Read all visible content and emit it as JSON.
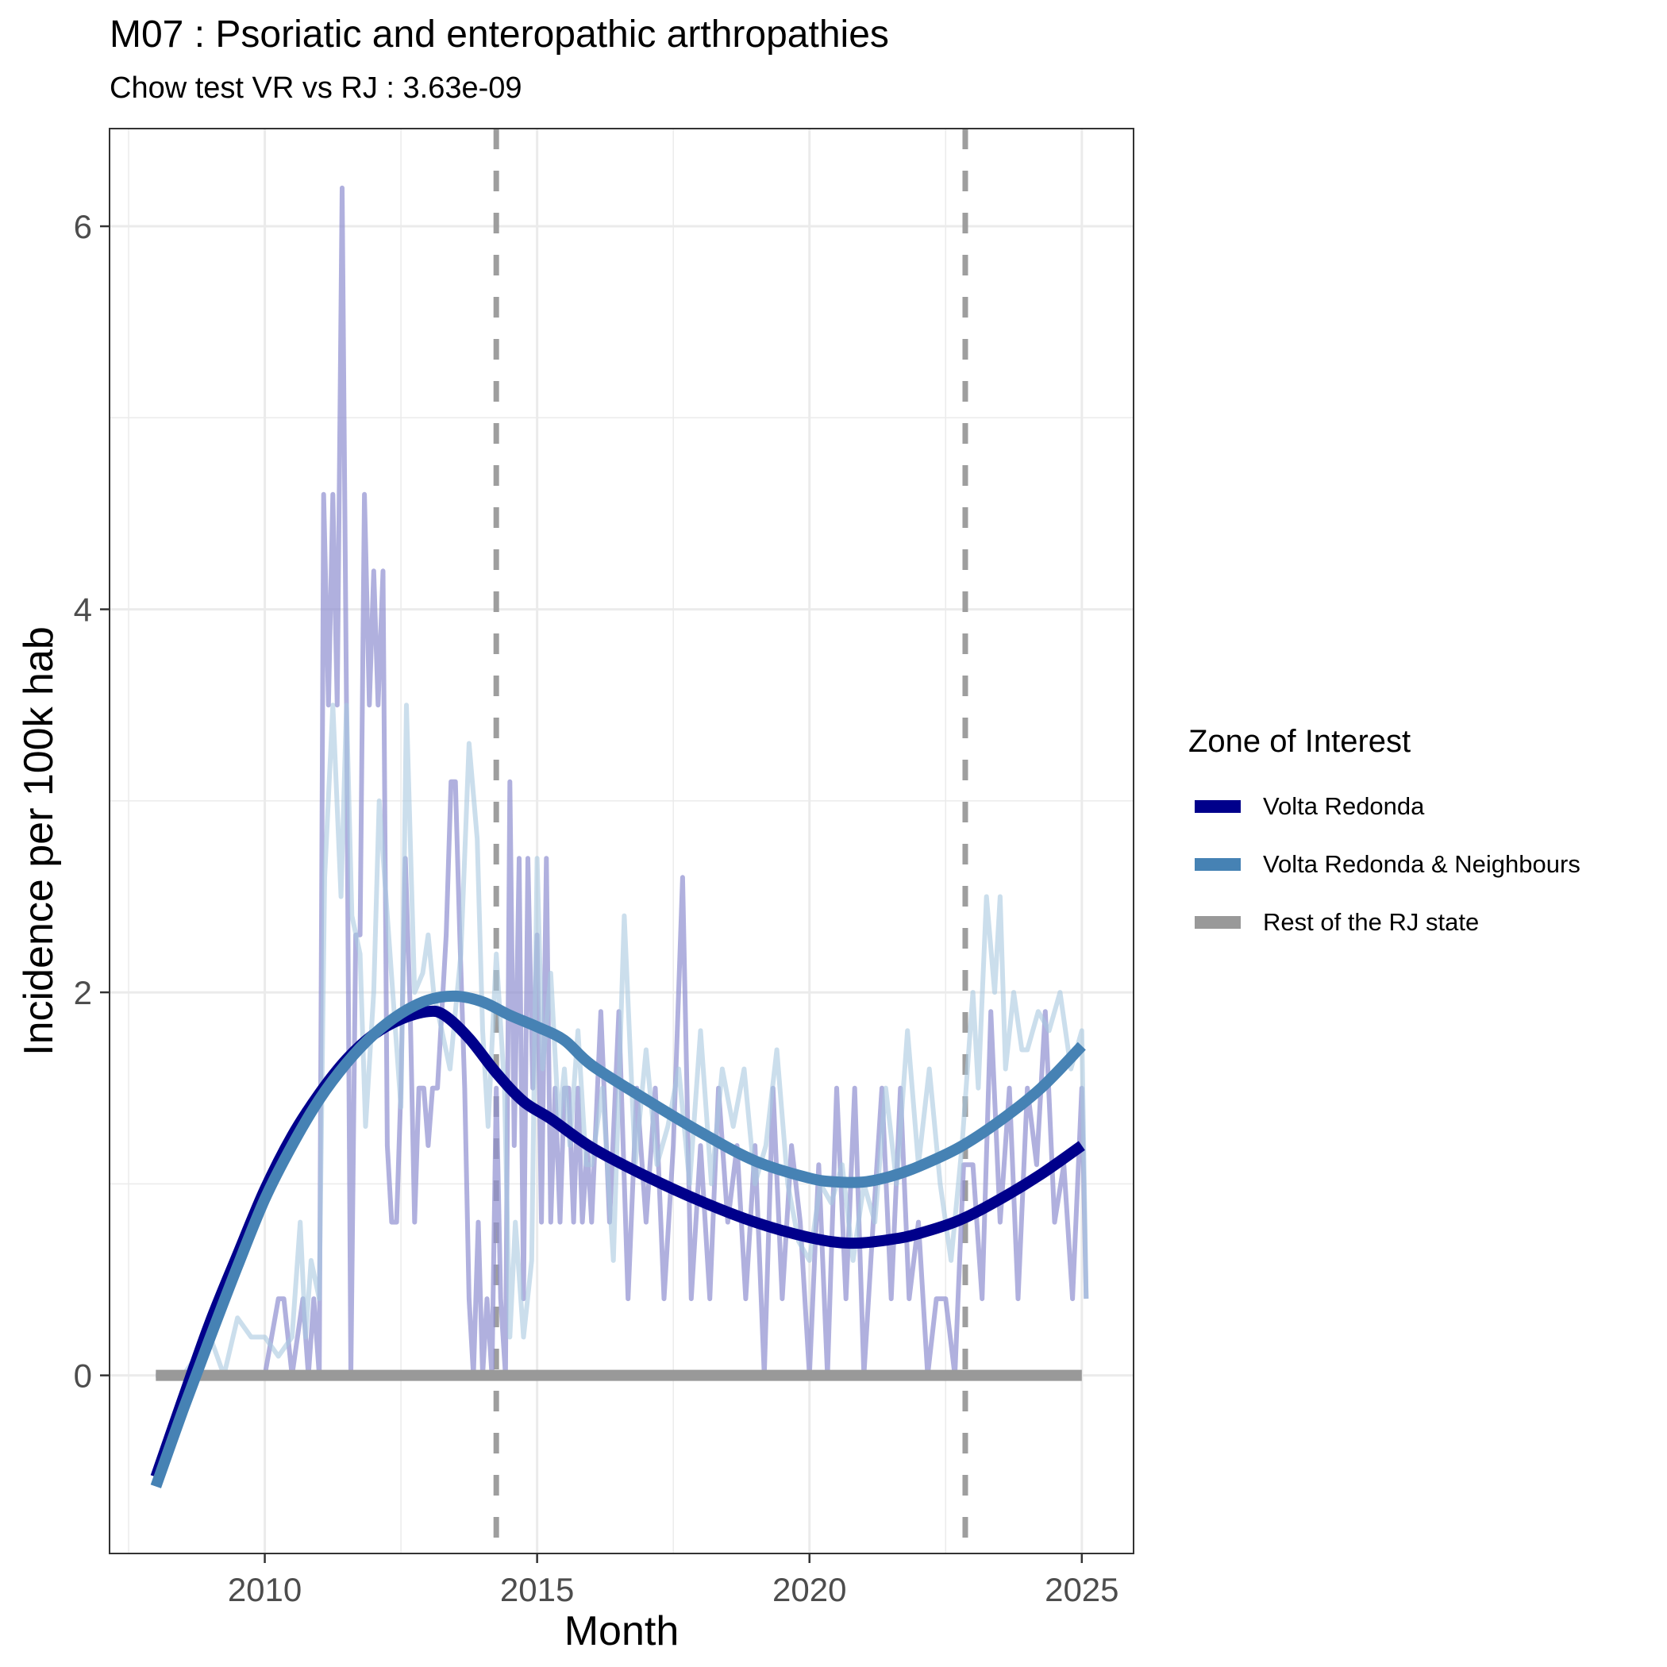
{
  "chart_data": {
    "type": "line",
    "title": "M07 : Psoriatic and enteropathic arthropathies",
    "subtitle": "Chow test VR vs RJ : 3.63e-09",
    "xlabel": "Month",
    "ylabel": "Incidence per 100k hab",
    "xlim": [
      2007.15,
      2025.95
    ],
    "ylim": [
      -0.93,
      6.51
    ],
    "x_ticks": [
      2010,
      2015,
      2020,
      2025
    ],
    "x_tick_labels": [
      "2010",
      "2015",
      "2020",
      "2025"
    ],
    "y_ticks": [
      0,
      2,
      4,
      6
    ],
    "y_tick_labels": [
      "0",
      "2",
      "4",
      "6"
    ],
    "grid": true,
    "legend": {
      "title": "Zone of Interest",
      "placement": "right",
      "entries": [
        {
          "name": "Volta Redonda",
          "color": "#00008B"
        },
        {
          "name": "Volta Redonda & Neighbours",
          "color": "#4682B4"
        },
        {
          "name": "Rest of the RJ state",
          "color": "#999999"
        }
      ]
    },
    "vlines": [
      {
        "x": 2014.25,
        "style": "dashed",
        "color": "#999999"
      },
      {
        "x": 2022.86,
        "style": "dashed",
        "color": "#999999"
      }
    ],
    "raw_series": [
      {
        "name": "Volta Redonda (monthly)",
        "color": "#8E8ED0",
        "x": [
          2008.0,
          2008.5,
          2009.0,
          2009.5,
          2010.0,
          2010.25,
          2010.35,
          2010.5,
          2010.7,
          2010.8,
          2010.9,
          2011.0,
          2011.08,
          2011.17,
          2011.25,
          2011.33,
          2011.42,
          2011.5,
          2011.58,
          2011.67,
          2011.75,
          2011.83,
          2011.92,
          2012.0,
          2012.08,
          2012.17,
          2012.25,
          2012.33,
          2012.42,
          2012.5,
          2012.58,
          2012.67,
          2012.75,
          2012.83,
          2012.92,
          2013.0,
          2013.08,
          2013.17,
          2013.25,
          2013.33,
          2013.42,
          2013.5,
          2013.58,
          2013.67,
          2013.75,
          2013.83,
          2013.92,
          2014.0,
          2014.08,
          2014.17,
          2014.25,
          2014.33,
          2014.42,
          2014.5,
          2014.58,
          2014.67,
          2014.75,
          2014.83,
          2014.92,
          2015.0,
          2015.08,
          2015.17,
          2015.25,
          2015.33,
          2015.42,
          2015.5,
          2015.58,
          2015.67,
          2015.75,
          2015.83,
          2015.92,
          2016.0,
          2016.17,
          2016.33,
          2016.5,
          2016.67,
          2016.83,
          2017.0,
          2017.17,
          2017.33,
          2017.5,
          2017.67,
          2017.83,
          2018.0,
          2018.17,
          2018.33,
          2018.5,
          2018.67,
          2018.83,
          2019.0,
          2019.17,
          2019.33,
          2019.5,
          2019.67,
          2019.83,
          2020.0,
          2020.17,
          2020.33,
          2020.5,
          2020.67,
          2020.83,
          2021.0,
          2021.17,
          2021.33,
          2021.5,
          2021.67,
          2021.83,
          2022.0,
          2022.17,
          2022.33,
          2022.5,
          2022.67,
          2022.83,
          2023.0,
          2023.17,
          2023.33,
          2023.5,
          2023.67,
          2023.83,
          2024.0,
          2024.17,
          2024.33,
          2024.5,
          2024.67,
          2024.83,
          2025.0,
          2025.08
        ],
        "y": [
          0,
          0,
          0,
          0,
          0,
          0.4,
          0.4,
          0,
          0.4,
          0,
          0.4,
          0,
          4.6,
          3.5,
          4.6,
          3.5,
          6.2,
          3.5,
          0,
          2.3,
          2.3,
          4.6,
          3.5,
          4.2,
          3.5,
          4.2,
          1.2,
          0.8,
          0.8,
          1.5,
          2.7,
          1.9,
          0.8,
          1.5,
          1.5,
          1.2,
          1.5,
          1.5,
          1.9,
          2.3,
          3.1,
          3.1,
          2.3,
          1.5,
          0.4,
          0,
          0.8,
          0,
          0.4,
          0,
          1.5,
          0.4,
          0,
          3.1,
          1.2,
          2.7,
          0.4,
          2.7,
          1.5,
          2.3,
          0.8,
          2.7,
          0.8,
          1.5,
          0.8,
          1.5,
          1.5,
          0.8,
          1.5,
          0.8,
          1.2,
          0.8,
          1.9,
          0.8,
          1.9,
          0.4,
          1.5,
          0.8,
          1.5,
          0.4,
          1.2,
          2.6,
          0.4,
          1.2,
          0.4,
          1.5,
          0.8,
          1.2,
          0.4,
          1.2,
          0,
          1.5,
          0.4,
          1.2,
          0.8,
          0,
          1.1,
          0,
          1.5,
          0.4,
          1.5,
          0,
          0.8,
          1.5,
          0.4,
          1.5,
          0.4,
          0.8,
          0,
          0.4,
          0.4,
          0,
          1.1,
          1.1,
          0.4,
          1.9,
          0.8,
          1.5,
          0.4,
          1.5,
          1.1,
          1.9,
          0.8,
          1.1,
          0.4,
          1.5,
          0.4
        ],
        "opacity": 0.7
      },
      {
        "name": "Volta Redonda & Neighbours (monthly)",
        "color": "#A8C8E0",
        "x": [
          2008.0,
          2008.5,
          2009.0,
          2009.25,
          2009.5,
          2009.75,
          2010.0,
          2010.25,
          2010.5,
          2010.65,
          2010.75,
          2010.85,
          2011.0,
          2011.1,
          2011.25,
          2011.4,
          2011.5,
          2011.6,
          2011.75,
          2011.85,
          2012.0,
          2012.1,
          2012.25,
          2012.4,
          2012.5,
          2012.6,
          2012.75,
          2012.9,
          2013.0,
          2013.1,
          2013.25,
          2013.4,
          2013.5,
          2013.6,
          2013.75,
          2013.9,
          2014.0,
          2014.1,
          2014.25,
          2014.4,
          2014.5,
          2014.6,
          2014.75,
          2014.9,
          2015.0,
          2015.1,
          2015.25,
          2015.4,
          2015.5,
          2015.6,
          2015.75,
          2015.9,
          2016.0,
          2016.2,
          2016.4,
          2016.6,
          2016.8,
          2017.0,
          2017.2,
          2017.4,
          2017.6,
          2017.8,
          2018.0,
          2018.2,
          2018.4,
          2018.6,
          2018.8,
          2019.0,
          2019.2,
          2019.4,
          2019.6,
          2019.8,
          2020.0,
          2020.2,
          2020.4,
          2020.6,
          2020.8,
          2021.0,
          2021.2,
          2021.4,
          2021.6,
          2021.8,
          2022.0,
          2022.2,
          2022.4,
          2022.6,
          2022.8,
          2023.0,
          2023.1,
          2023.25,
          2023.4,
          2023.5,
          2023.6,
          2023.75,
          2023.9,
          2024.0,
          2024.2,
          2024.4,
          2024.6,
          2024.8,
          2025.0,
          2025.08
        ],
        "y": [
          0,
          0,
          0.2,
          0,
          0.3,
          0.2,
          0.2,
          0.1,
          0.2,
          0.8,
          0.2,
          0.6,
          0.4,
          2.6,
          3.5,
          2.5,
          3.5,
          2.4,
          2.2,
          1.3,
          2.0,
          3.0,
          2.4,
          1.8,
          1.4,
          3.5,
          2.0,
          2.1,
          2.3,
          2.0,
          1.8,
          1.6,
          1.9,
          2.2,
          3.3,
          2.8,
          1.8,
          1.3,
          2.2,
          1.5,
          0.2,
          0.8,
          0.2,
          0.6,
          2.7,
          1.6,
          2.1,
          1.3,
          1.6,
          1.2,
          1.8,
          1.1,
          1.1,
          1.5,
          0.6,
          2.4,
          1.1,
          1.7,
          1.1,
          1.3,
          1.6,
          1.0,
          1.8,
          1.0,
          1.6,
          1.3,
          1.6,
          1.0,
          1.2,
          1.7,
          1.0,
          0.7,
          0.6,
          1.0,
          0.9,
          1.1,
          0.6,
          1.0,
          0.8,
          1.5,
          1.0,
          1.8,
          1.1,
          1.6,
          1.0,
          0.6,
          1.2,
          2.0,
          1.5,
          2.5,
          2.0,
          2.5,
          1.6,
          2.0,
          1.7,
          1.7,
          1.9,
          1.8,
          2.0,
          1.6,
          1.8,
          0.4
        ],
        "opacity": 0.6
      }
    ],
    "series": [
      {
        "name": "Volta Redonda",
        "color": "#00008B",
        "x": [
          2008.0,
          2008.5,
          2009.0,
          2009.5,
          2010.0,
          2010.5,
          2011.0,
          2011.5,
          2012.0,
          2012.5,
          2013.0,
          2013.3,
          2013.75,
          2014.25,
          2014.75,
          2015.25,
          2016.0,
          2017.0,
          2018.0,
          2019.0,
          2020.0,
          2020.75,
          2021.5,
          2022.0,
          2022.75,
          2023.5,
          2024.25,
          2025.0
        ],
        "y": [
          -0.53,
          -0.12,
          0.28,
          0.63,
          0.97,
          1.25,
          1.47,
          1.65,
          1.78,
          1.86,
          1.9,
          1.88,
          1.76,
          1.58,
          1.43,
          1.34,
          1.19,
          1.04,
          0.91,
          0.8,
          0.72,
          0.69,
          0.71,
          0.74,
          0.81,
          0.92,
          1.05,
          1.2
        ]
      },
      {
        "name": "Volta Redonda & Neighbours",
        "color": "#4682B4",
        "x": [
          2008.0,
          2008.5,
          2009.0,
          2009.5,
          2010.0,
          2010.5,
          2011.0,
          2011.5,
          2012.0,
          2012.5,
          2013.0,
          2013.5,
          2014.0,
          2014.5,
          2015.0,
          2015.5,
          2016.0,
          2017.0,
          2018.0,
          2019.0,
          2020.0,
          2020.5,
          2021.0,
          2021.5,
          2022.0,
          2022.75,
          2023.5,
          2024.25,
          2025.0
        ],
        "y": [
          -0.58,
          -0.18,
          0.2,
          0.57,
          0.92,
          1.2,
          1.44,
          1.63,
          1.78,
          1.89,
          1.96,
          1.98,
          1.95,
          1.88,
          1.82,
          1.75,
          1.62,
          1.44,
          1.27,
          1.12,
          1.03,
          1.01,
          1.01,
          1.04,
          1.09,
          1.19,
          1.33,
          1.5,
          1.72
        ]
      },
      {
        "name": "Rest of the RJ state",
        "color": "#999999",
        "x": [
          2008.0,
          2025.0
        ],
        "y": [
          0.0,
          0.0
        ]
      }
    ]
  }
}
